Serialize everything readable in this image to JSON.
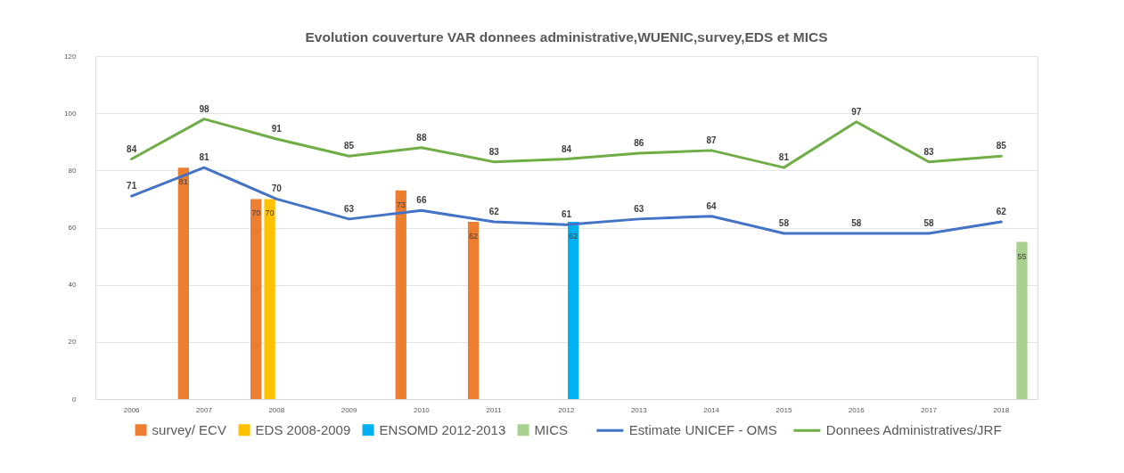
{
  "chart_data": {
    "type": "bar",
    "title": "Evolution couverture VAR donnees administrative,WUENIC,survey,EDS et MICS",
    "categories": [
      "2006",
      "2007",
      "2008",
      "2009",
      "2010",
      "2011",
      "2012",
      "2013",
      "2014",
      "2015",
      "2016",
      "2017",
      "2018"
    ],
    "series": [
      {
        "name": "survey/ ECV",
        "color": "#ed7d31",
        "values": [
          null,
          81,
          70,
          null,
          73,
          62,
          null,
          null,
          null,
          null,
          null,
          null,
          null
        ]
      },
      {
        "name": "EDS 2008-2009",
        "color": "#ffc000",
        "values": [
          null,
          null,
          70,
          null,
          null,
          null,
          null,
          null,
          null,
          null,
          null,
          null,
          null
        ]
      },
      {
        "name": "ENSOMD 2012-2013",
        "color": "#00b0f0",
        "values": [
          null,
          null,
          null,
          null,
          null,
          null,
          62,
          null,
          null,
          null,
          null,
          null,
          null
        ]
      },
      {
        "name": "MICS",
        "color": "#a9d18e",
        "values": [
          null,
          null,
          null,
          null,
          null,
          null,
          null,
          null,
          null,
          null,
          null,
          null,
          55
        ]
      },
      {
        "name": "Estimate UNICEF - OMS",
        "type": "line",
        "color": "#4472c4",
        "values": [
          71,
          81,
          70,
          63,
          66,
          62,
          61,
          63,
          64,
          58,
          58,
          58,
          62
        ]
      },
      {
        "name": "Donnees Administratives/JRF",
        "type": "line",
        "color": "#70ad47",
        "values": [
          84,
          98,
          91,
          85,
          88,
          83,
          84,
          86,
          87,
          81,
          97,
          83,
          85
        ]
      }
    ],
    "ylim": [
      0,
      120
    ],
    "yticks": [
      0,
      20,
      40,
      60,
      80,
      100,
      120
    ],
    "grid": "y",
    "legend": "bottom",
    "data_labels": true
  }
}
